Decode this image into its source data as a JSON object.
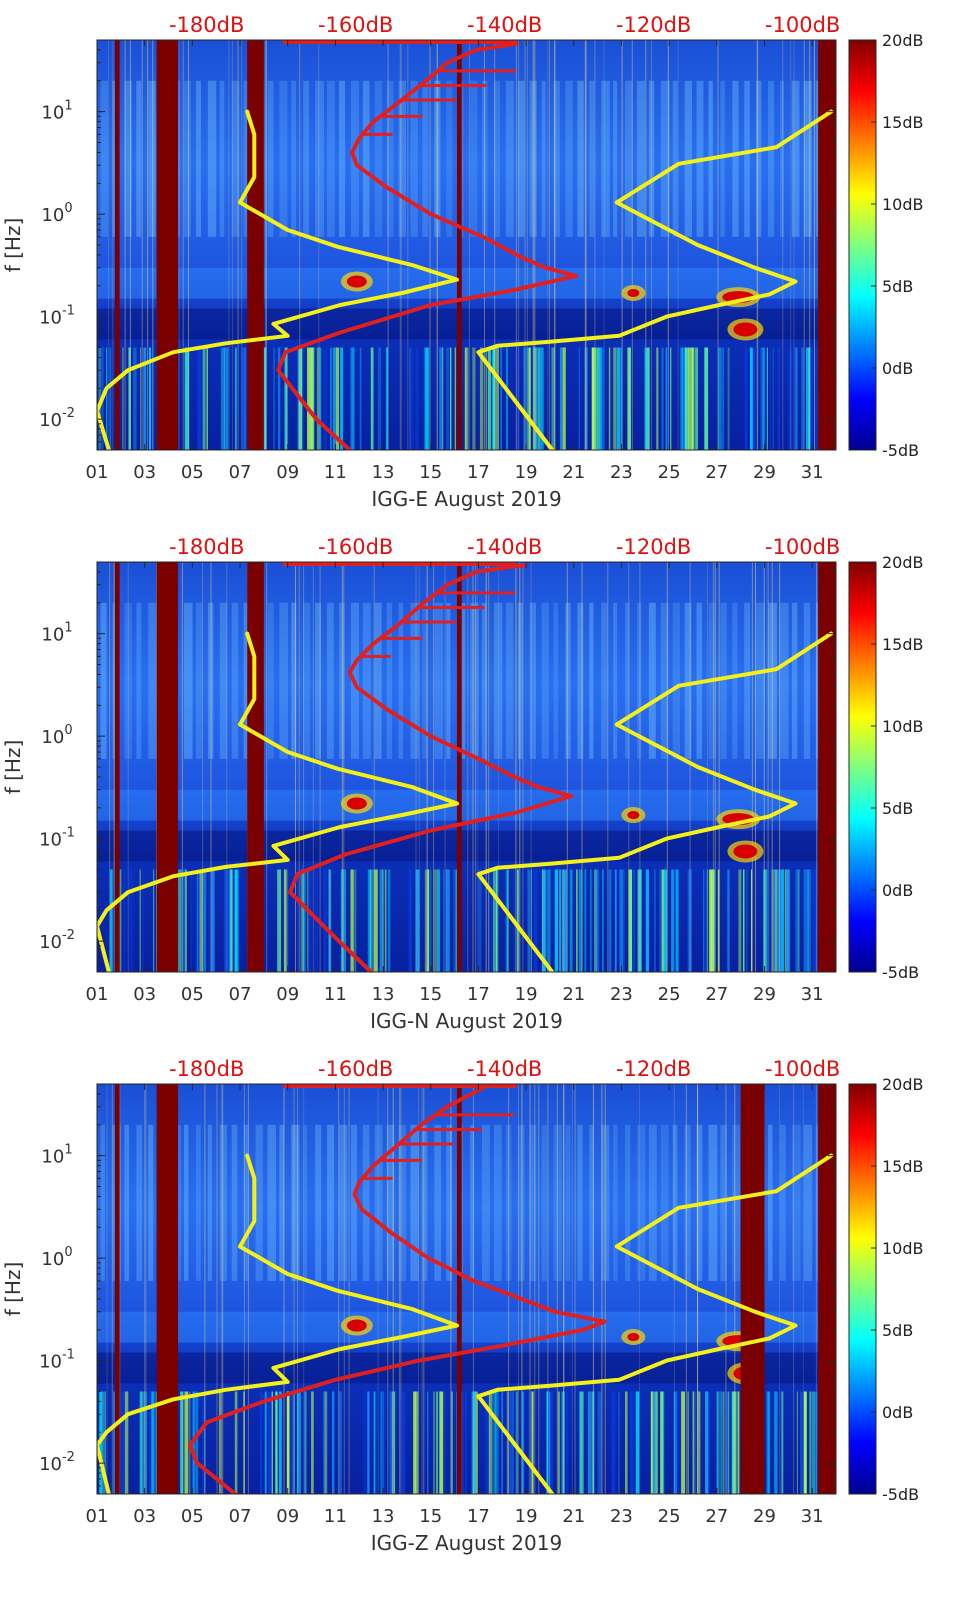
{
  "colors": {
    "red_curve": "#e02020",
    "yellow_curve": "#f4f01a",
    "db_label": "#e01010",
    "band": "#7a0000"
  },
  "chart_data": [
    {
      "type": "heatmap",
      "title": "",
      "xlabel": "IGG-E August 2019",
      "ylabel": "f [Hz]",
      "x_ticks": [
        "01",
        "03",
        "05",
        "07",
        "09",
        "11",
        "13",
        "15",
        "17",
        "19",
        "21",
        "23",
        "25",
        "27",
        "29",
        "31"
      ],
      "xlim": [
        1,
        32
      ],
      "y_scale": "log",
      "ylim": [
        0.005,
        50
      ],
      "y_ticks": [
        {
          "base": "10",
          "exp": "-2",
          "value": 0.01
        },
        {
          "base": "10",
          "exp": "-1",
          "value": 0.1
        },
        {
          "base": "10",
          "exp": "0",
          "value": 1
        },
        {
          "base": "10",
          "exp": "1",
          "value": 10
        }
      ],
      "top_db_labels": [
        "-180dB",
        "-160dB",
        "-140dB",
        "-120dB",
        "-100dB"
      ],
      "top_db_positions": [
        4,
        9,
        14,
        19,
        24
      ],
      "colorbar": {
        "labels": [
          "20dB",
          "15dB",
          "10dB",
          "5dB",
          "0dB",
          "-5dB"
        ],
        "range": [
          -5,
          20
        ]
      },
      "dark_bands": [
        {
          "from": 1.75,
          "to": 1.95
        },
        {
          "from": 3.5,
          "to": 4.4
        },
        {
          "from": 7.3,
          "to": 8.0
        },
        {
          "from": 16.1,
          "to": 16.3
        },
        {
          "from": 31.25,
          "to": 32
        }
      ],
      "series": [
        {
          "name": "red-curve",
          "color": "#e02020",
          "points": [
            [
              11.6,
              0.005
            ],
            [
              10.2,
              0.01
            ],
            [
              8.6,
              0.03
            ],
            [
              8.9,
              0.045
            ],
            [
              11.2,
              0.07
            ],
            [
              15.0,
              0.13
            ],
            [
              18.4,
              0.18
            ],
            [
              21.1,
              0.25
            ],
            [
              19.8,
              0.3
            ],
            [
              18.8,
              0.38
            ],
            [
              17.2,
              0.6
            ],
            [
              15.0,
              1.0
            ],
            [
              13.2,
              1.8
            ],
            [
              11.9,
              3.0
            ],
            [
              11.7,
              4.0
            ],
            [
              12.0,
              5.5
            ],
            [
              12.6,
              8.0
            ],
            [
              13.6,
              12
            ],
            [
              14.8,
              20
            ],
            [
              15.7,
              30
            ],
            [
              16.9,
              40
            ],
            [
              18.1,
              44
            ],
            [
              18.6,
              46
            ]
          ]
        },
        {
          "name": "yellow-curve-left",
          "color": "#f4f01a",
          "points": [
            [
              1.5,
              0.005
            ],
            [
              1.0,
              0.012
            ],
            [
              1.4,
              0.02
            ],
            [
              2.3,
              0.03
            ],
            [
              4.2,
              0.045
            ],
            [
              6.4,
              0.055
            ],
            [
              9.0,
              0.065
            ],
            [
              8.4,
              0.085
            ],
            [
              11.2,
              0.13
            ],
            [
              13.8,
              0.17
            ],
            [
              16.1,
              0.23
            ],
            [
              14.2,
              0.32
            ],
            [
              11.1,
              0.48
            ],
            [
              9.0,
              0.7
            ],
            [
              7.0,
              1.3
            ],
            [
              7.6,
              2.3
            ],
            [
              7.6,
              6.0
            ],
            [
              7.3,
              10
            ]
          ]
        },
        {
          "name": "yellow-curve-right",
          "color": "#f4f01a",
          "points": [
            [
              20.1,
              0.005
            ],
            [
              17.0,
              0.045
            ],
            [
              17.8,
              0.052
            ],
            [
              20.0,
              0.057
            ],
            [
              22.9,
              0.065
            ],
            [
              24.9,
              0.1
            ],
            [
              27.1,
              0.13
            ],
            [
              29.2,
              0.165
            ],
            [
              30.3,
              0.22
            ],
            [
              28.6,
              0.3
            ],
            [
              26.2,
              0.5
            ],
            [
              22.8,
              1.3
            ],
            [
              25.4,
              3.1
            ],
            [
              29.5,
              4.5
            ],
            [
              31.8,
              10
            ]
          ]
        }
      ]
    },
    {
      "type": "heatmap",
      "title": "",
      "xlabel": "IGG-N August 2019",
      "ylabel": "f [Hz]",
      "x_ticks": [
        "01",
        "03",
        "05",
        "07",
        "09",
        "11",
        "13",
        "15",
        "17",
        "19",
        "21",
        "23",
        "25",
        "27",
        "29",
        "31"
      ],
      "xlim": [
        1,
        32
      ],
      "y_scale": "log",
      "ylim": [
        0.005,
        50
      ],
      "y_ticks": [
        {
          "base": "10",
          "exp": "-2",
          "value": 0.01
        },
        {
          "base": "10",
          "exp": "-1",
          "value": 0.1
        },
        {
          "base": "10",
          "exp": "0",
          "value": 1
        },
        {
          "base": "10",
          "exp": "1",
          "value": 10
        }
      ],
      "top_db_labels": [
        "-180dB",
        "-160dB",
        "-140dB",
        "-120dB",
        "-100dB"
      ],
      "top_db_positions": [
        4,
        9,
        14,
        19,
        24
      ],
      "colorbar": {
        "labels": [
          "20dB",
          "15dB",
          "10dB",
          "5dB",
          "0dB",
          "-5dB"
        ],
        "range": [
          -5,
          20
        ]
      },
      "dark_bands": [
        {
          "from": 1.75,
          "to": 1.95
        },
        {
          "from": 3.5,
          "to": 4.4
        },
        {
          "from": 7.3,
          "to": 8.0
        },
        {
          "from": 16.1,
          "to": 16.3
        },
        {
          "from": 31.25,
          "to": 32
        }
      ],
      "series": [
        {
          "name": "red-curve",
          "color": "#e02020",
          "points": [
            [
              12.5,
              0.005
            ],
            [
              10.8,
              0.012
            ],
            [
              9.1,
              0.03
            ],
            [
              9.4,
              0.045
            ],
            [
              11.4,
              0.07
            ],
            [
              15.0,
              0.12
            ],
            [
              18.6,
              0.18
            ],
            [
              20.9,
              0.26
            ],
            [
              19.5,
              0.32
            ],
            [
              18.5,
              0.4
            ],
            [
              17.0,
              0.6
            ],
            [
              15.0,
              1.0
            ],
            [
              13.2,
              1.8
            ],
            [
              11.9,
              3.0
            ],
            [
              11.6,
              4.2
            ],
            [
              11.9,
              5.5
            ],
            [
              12.6,
              8.0
            ],
            [
              13.6,
              12
            ],
            [
              14.7,
              20
            ],
            [
              15.7,
              30
            ],
            [
              16.9,
              40
            ],
            [
              18.4,
              45
            ],
            [
              18.9,
              46
            ]
          ]
        },
        {
          "name": "yellow-curve-left",
          "color": "#f4f01a",
          "points": [
            [
              1.5,
              0.005
            ],
            [
              1.0,
              0.014
            ],
            [
              1.4,
              0.02
            ],
            [
              2.3,
              0.03
            ],
            [
              4.2,
              0.043
            ],
            [
              6.4,
              0.053
            ],
            [
              9.0,
              0.062
            ],
            [
              8.4,
              0.085
            ],
            [
              11.2,
              0.13
            ],
            [
              13.8,
              0.17
            ],
            [
              16.1,
              0.22
            ],
            [
              14.2,
              0.32
            ],
            [
              11.1,
              0.48
            ],
            [
              9.0,
              0.7
            ],
            [
              7.0,
              1.3
            ],
            [
              7.6,
              2.3
            ],
            [
              7.6,
              6.0
            ],
            [
              7.3,
              10
            ]
          ]
        },
        {
          "name": "yellow-curve-right",
          "color": "#f4f01a",
          "points": [
            [
              20.1,
              0.005
            ],
            [
              17.0,
              0.045
            ],
            [
              17.8,
              0.052
            ],
            [
              20.0,
              0.057
            ],
            [
              22.9,
              0.065
            ],
            [
              24.9,
              0.1
            ],
            [
              27.1,
              0.13
            ],
            [
              29.2,
              0.165
            ],
            [
              30.3,
              0.22
            ],
            [
              28.6,
              0.3
            ],
            [
              26.2,
              0.5
            ],
            [
              22.8,
              1.3
            ],
            [
              25.4,
              3.1
            ],
            [
              29.5,
              4.5
            ],
            [
              31.8,
              10
            ]
          ]
        }
      ]
    },
    {
      "type": "heatmap",
      "title": "",
      "xlabel": "IGG-Z August 2019",
      "ylabel": "f [Hz]",
      "x_ticks": [
        "01",
        "03",
        "05",
        "07",
        "09",
        "11",
        "13",
        "15",
        "17",
        "19",
        "21",
        "23",
        "25",
        "27",
        "29",
        "31"
      ],
      "xlim": [
        1,
        32
      ],
      "y_scale": "log",
      "ylim": [
        0.005,
        50
      ],
      "y_ticks": [
        {
          "base": "10",
          "exp": "-2",
          "value": 0.01
        },
        {
          "base": "10",
          "exp": "-1",
          "value": 0.1
        },
        {
          "base": "10",
          "exp": "0",
          "value": 1
        },
        {
          "base": "10",
          "exp": "1",
          "value": 10
        }
      ],
      "top_db_labels": [
        "-180dB",
        "-160dB",
        "-140dB",
        "-120dB",
        "-100dB"
      ],
      "top_db_positions": [
        4,
        9,
        14,
        19,
        24
      ],
      "colorbar": {
        "labels": [
          "20dB",
          "15dB",
          "10dB",
          "5dB",
          "0dB",
          "-5dB"
        ],
        "range": [
          -5,
          20
        ]
      },
      "dark_bands": [
        {
          "from": 1.75,
          "to": 1.95
        },
        {
          "from": 3.5,
          "to": 4.4
        },
        {
          "from": 16.1,
          "to": 16.3
        },
        {
          "from": 28.0,
          "to": 29.0
        },
        {
          "from": 31.25,
          "to": 32
        }
      ],
      "series": [
        {
          "name": "red-curve",
          "color": "#e02020",
          "points": [
            [
              6.8,
              0.005
            ],
            [
              5.2,
              0.01
            ],
            [
              4.9,
              0.015
            ],
            [
              5.6,
              0.025
            ],
            [
              8.0,
              0.04
            ],
            [
              11.0,
              0.065
            ],
            [
              14.5,
              0.1
            ],
            [
              18.0,
              0.14
            ],
            [
              21.4,
              0.2
            ],
            [
              22.3,
              0.24
            ],
            [
              20.2,
              0.3
            ],
            [
              18.8,
              0.4
            ],
            [
              16.8,
              0.6
            ],
            [
              14.9,
              1.0
            ],
            [
              13.3,
              1.8
            ],
            [
              12.1,
              3.0
            ],
            [
              11.8,
              4.2
            ],
            [
              12.0,
              5.5
            ],
            [
              12.6,
              8.0
            ],
            [
              13.5,
              12
            ],
            [
              14.6,
              20
            ],
            [
              15.7,
              30
            ],
            [
              16.7,
              40
            ],
            [
              17.2,
              46
            ]
          ]
        },
        {
          "name": "yellow-curve-left",
          "color": "#f4f01a",
          "points": [
            [
              1.5,
              0.005
            ],
            [
              1.0,
              0.015
            ],
            [
              1.4,
              0.02
            ],
            [
              2.3,
              0.03
            ],
            [
              4.2,
              0.042
            ],
            [
              6.4,
              0.052
            ],
            [
              9.0,
              0.062
            ],
            [
              8.4,
              0.085
            ],
            [
              11.2,
              0.13
            ],
            [
              13.8,
              0.17
            ],
            [
              16.1,
              0.22
            ],
            [
              14.2,
              0.32
            ],
            [
              11.1,
              0.48
            ],
            [
              9.0,
              0.7
            ],
            [
              7.0,
              1.3
            ],
            [
              7.6,
              2.3
            ],
            [
              7.6,
              6.0
            ],
            [
              7.3,
              10
            ]
          ]
        },
        {
          "name": "yellow-curve-right",
          "color": "#f4f01a",
          "points": [
            [
              20.1,
              0.005
            ],
            [
              17.0,
              0.045
            ],
            [
              17.8,
              0.052
            ],
            [
              20.0,
              0.057
            ],
            [
              22.9,
              0.065
            ],
            [
              24.9,
              0.1
            ],
            [
              27.1,
              0.13
            ],
            [
              29.2,
              0.165
            ],
            [
              30.3,
              0.22
            ],
            [
              28.6,
              0.3
            ],
            [
              26.2,
              0.5
            ],
            [
              22.8,
              1.3
            ],
            [
              25.4,
              3.1
            ],
            [
              29.5,
              4.5
            ],
            [
              31.8,
              10
            ]
          ]
        }
      ]
    }
  ]
}
